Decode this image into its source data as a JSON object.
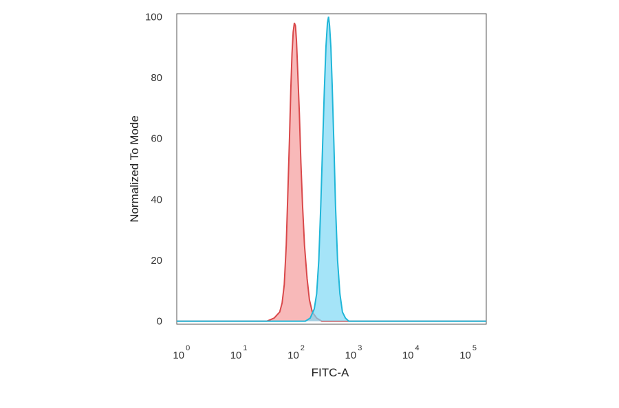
{
  "chart_data": {
    "type": "area",
    "title": "",
    "xlabel": "FITC-A",
    "ylabel": "Normalized To Mode",
    "xscale": "log",
    "xlim": [
      0.8,
      200000
    ],
    "ylim": [
      -1,
      101
    ],
    "x_ticks": [
      {
        "base": "10",
        "exp": "0",
        "value": 1
      },
      {
        "base": "10",
        "exp": "1",
        "value": 10
      },
      {
        "base": "10",
        "exp": "2",
        "value": 100
      },
      {
        "base": "10",
        "exp": "3",
        "value": 1000
      },
      {
        "base": "10",
        "exp": "4",
        "value": 10000
      },
      {
        "base": "10",
        "exp": "5",
        "value": 100000
      }
    ],
    "y_ticks": [
      "0",
      "20",
      "40",
      "60",
      "80",
      "100"
    ],
    "grid": false,
    "series": [
      {
        "color": "#d9484a",
        "fill": "#f59b9b",
        "points": [
          [
            0.8,
            0
          ],
          [
            30,
            0
          ],
          [
            40,
            1
          ],
          [
            50,
            3
          ],
          [
            55,
            6
          ],
          [
            60,
            12
          ],
          [
            65,
            25
          ],
          [
            70,
            45
          ],
          [
            74,
            60
          ],
          [
            78,
            76
          ],
          [
            82,
            88
          ],
          [
            86,
            95
          ],
          [
            90,
            98
          ],
          [
            94,
            97
          ],
          [
            98,
            92
          ],
          [
            103,
            82
          ],
          [
            110,
            68
          ],
          [
            117,
            52
          ],
          [
            125,
            38
          ],
          [
            135,
            25
          ],
          [
            150,
            14
          ],
          [
            165,
            7
          ],
          [
            185,
            3
          ],
          [
            220,
            1
          ],
          [
            270,
            0
          ],
          [
            200000,
            0
          ]
        ]
      },
      {
        "color": "#1fb6d8",
        "fill": "#7fd9f5",
        "points": [
          [
            0.8,
            0
          ],
          [
            140,
            0
          ],
          [
            170,
            1
          ],
          [
            200,
            4
          ],
          [
            220,
            9
          ],
          [
            240,
            20
          ],
          [
            260,
            38
          ],
          [
            280,
            58
          ],
          [
            300,
            76
          ],
          [
            320,
            90
          ],
          [
            340,
            98
          ],
          [
            355,
            100
          ],
          [
            370,
            97
          ],
          [
            390,
            90
          ],
          [
            410,
            78
          ],
          [
            440,
            58
          ],
          [
            470,
            38
          ],
          [
            510,
            20
          ],
          [
            560,
            9
          ],
          [
            620,
            3
          ],
          [
            700,
            1
          ],
          [
            800,
            0
          ],
          [
            200000,
            0
          ]
        ]
      }
    ]
  }
}
